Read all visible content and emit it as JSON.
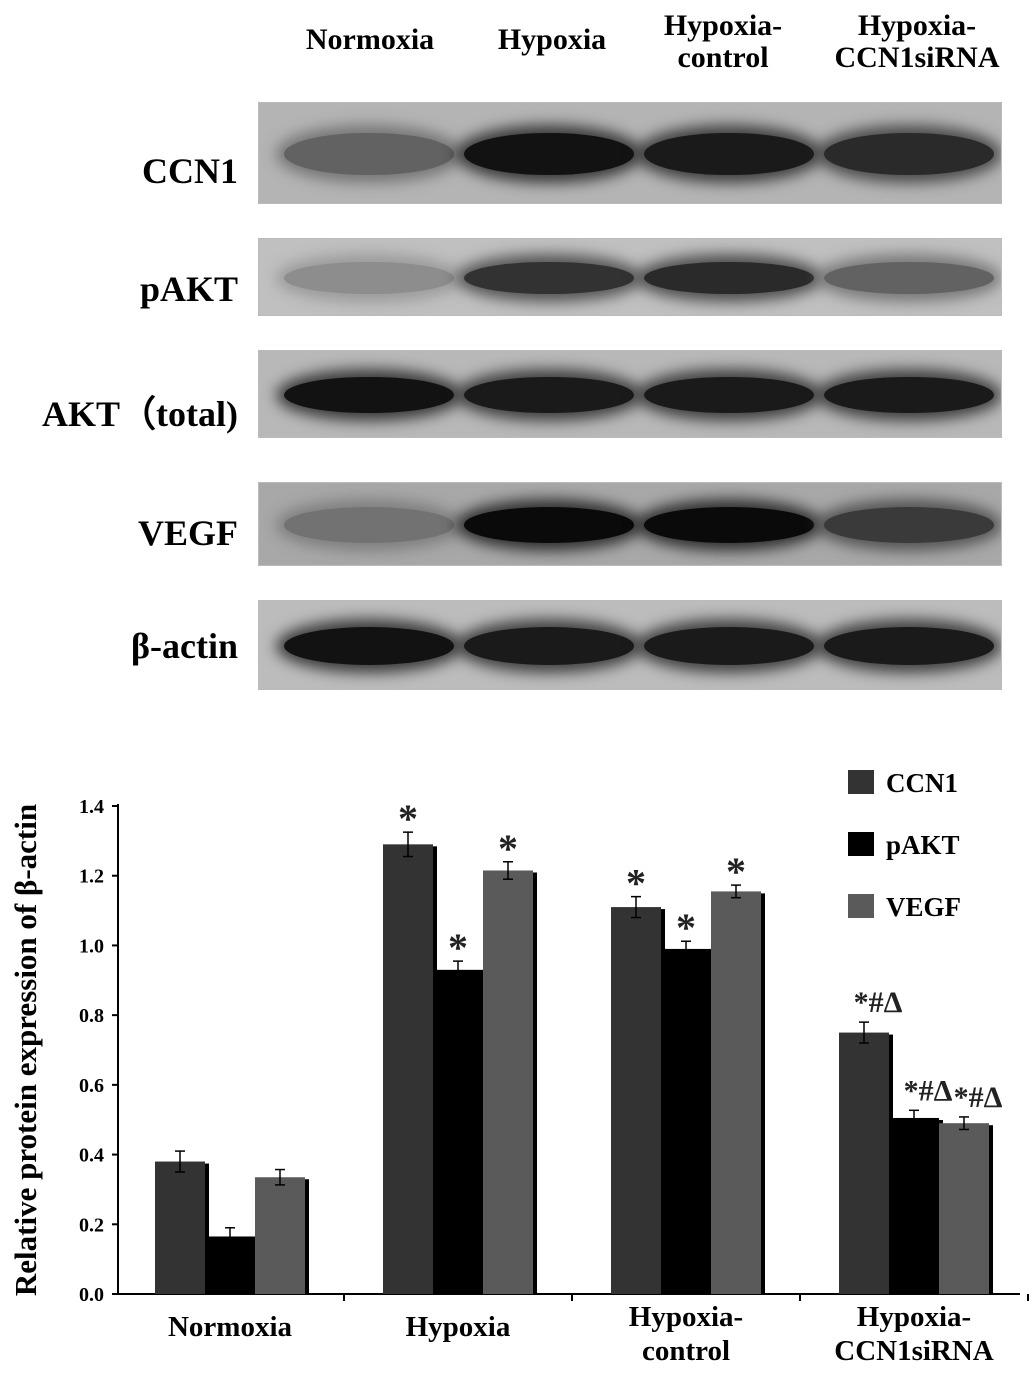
{
  "blot": {
    "lanes": [
      "Normoxia",
      "Hypoxia",
      "Hypoxia-\ncontrol",
      "Hypoxia-\nCCN1siRNA"
    ],
    "rows": [
      {
        "label": "CCN1",
        "intensity": [
          0.45,
          0.95,
          0.9,
          0.8
        ],
        "bg": "#b4b4b4"
      },
      {
        "label": "pAKT",
        "intensity": [
          0.18,
          0.75,
          0.8,
          0.45
        ],
        "bg": "#c0c0c0"
      },
      {
        "label": "AKT（total)",
        "intensity": [
          0.95,
          0.9,
          0.9,
          0.9
        ],
        "bg": "#b8b8b8"
      },
      {
        "label": "VEGF",
        "intensity": [
          0.35,
          1.0,
          1.0,
          0.7
        ],
        "bg": "#a8a8a8"
      },
      {
        "label": "β-actin",
        "intensity": [
          0.95,
          0.9,
          0.9,
          0.9
        ],
        "bg": "#bcbcbc"
      }
    ]
  },
  "chart_data": {
    "type": "bar",
    "categories": [
      "Normoxia",
      "Hypoxia",
      "Hypoxia-\ncontrol",
      "Hypoxia-\nCCN1siRNA"
    ],
    "series": [
      {
        "name": "CCN1",
        "values": [
          0.38,
          1.29,
          1.11,
          0.75
        ],
        "errors": [
          0.03,
          0.035,
          0.03,
          0.03
        ],
        "color": "#333333"
      },
      {
        "name": "pAKT",
        "values": [
          0.165,
          0.93,
          0.99,
          0.505
        ],
        "errors": [
          0.025,
          0.025,
          0.022,
          0.022
        ],
        "color": "#000000"
      },
      {
        "name": "VEGF",
        "values": [
          0.335,
          1.215,
          1.155,
          0.49
        ],
        "errors": [
          0.022,
          0.025,
          0.018,
          0.018
        ],
        "color": "#5a5a5a"
      }
    ],
    "annotations": [
      [
        "",
        "*",
        "*",
        "*#Δ"
      ],
      [
        "",
        "*",
        "*",
        "*#Δ"
      ],
      [
        "",
        "*",
        "*",
        "*#Δ"
      ]
    ],
    "ylabel": "Relative protein  expression of β-actin",
    "ylim": [
      0,
      1.4
    ],
    "yticks": [
      "0.0",
      "0.2",
      "0.4",
      "0.6",
      "0.8",
      "1.0",
      "1.2",
      "1.4"
    ],
    "legend": "top-right"
  }
}
